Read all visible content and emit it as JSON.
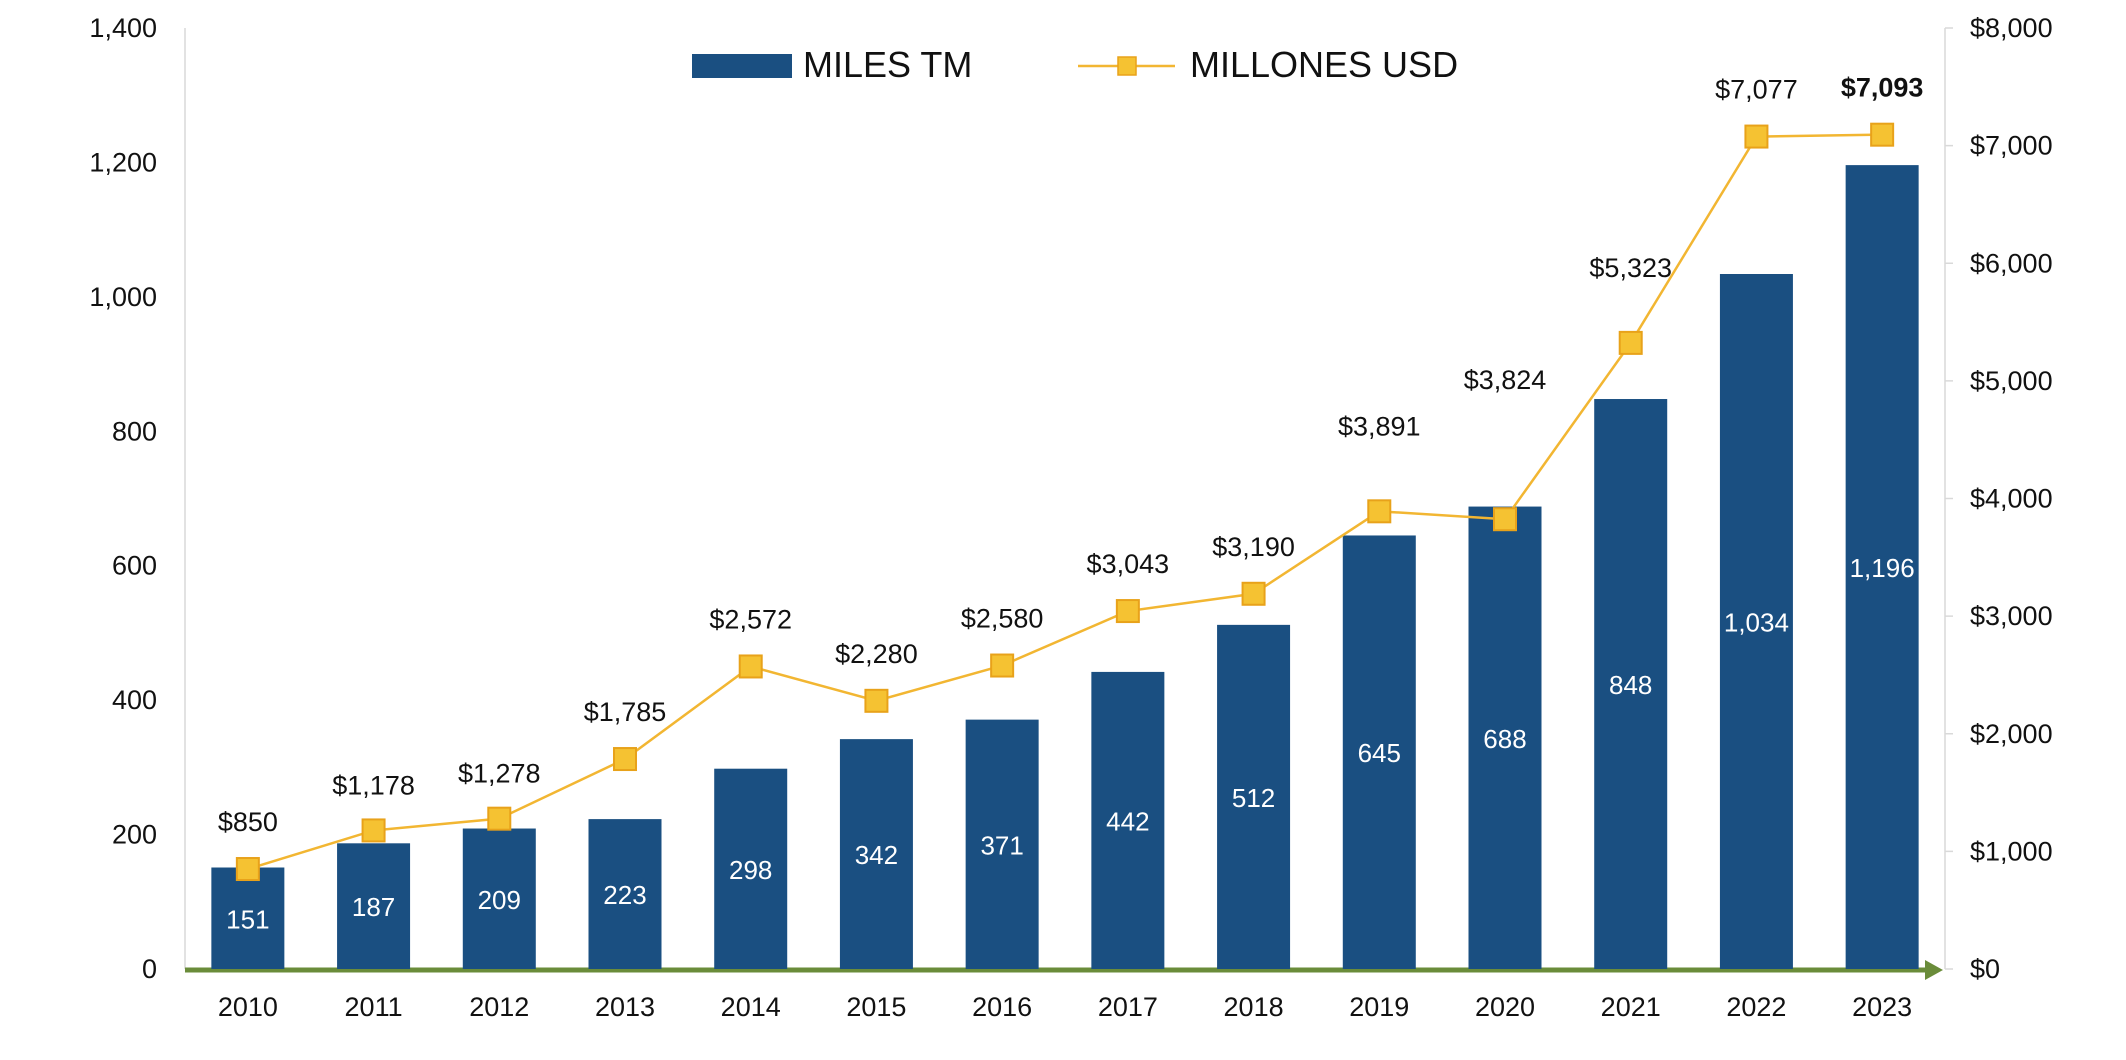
{
  "chart_data": {
    "type": "bar",
    "categories": [
      "2010",
      "2011",
      "2012",
      "2013",
      "2014",
      "2015",
      "2016",
      "2017",
      "2018",
      "2019",
      "2020",
      "2021",
      "2022",
      "2023"
    ],
    "series": [
      {
        "name": "MILES TM",
        "type": "bar",
        "axis": "left",
        "values": [
          151,
          187,
          209,
          223,
          298,
          342,
          371,
          442,
          512,
          645,
          688,
          848,
          1034,
          1196
        ],
        "labels": [
          "151",
          "187",
          "209",
          "223",
          "298",
          "342",
          "371",
          "442",
          "512",
          "645",
          "688",
          "848",
          "1,034",
          "1,196"
        ],
        "color": "#1a4f81"
      },
      {
        "name": "MILLONES USD",
        "type": "line",
        "axis": "right",
        "values": [
          850,
          1178,
          1278,
          1785,
          2572,
          2280,
          2580,
          3043,
          3190,
          3891,
          3824,
          5323,
          7077,
          7093
        ],
        "labels": [
          "$850",
          "$1,178",
          "$1,278",
          "$1,785",
          "$2,572",
          "$2,280",
          "$2,580",
          "$3,043",
          "$3,190",
          "$3,891",
          "$3,824",
          "$5,323",
          "$7,077",
          "$7,093"
        ],
        "color": "#f2b632"
      }
    ],
    "y_left": {
      "ylim": [
        0,
        1400
      ],
      "ticks": [
        "0",
        "200",
        "400",
        "600",
        "800",
        "1,000",
        "1,200",
        "1,400"
      ]
    },
    "y_right": {
      "ylim": [
        0,
        8000
      ],
      "ticks": [
        "$0",
        "$1,000",
        "$2,000",
        "$3,000",
        "$4,000",
        "$5,000",
        "$6,000",
        "$7,000",
        "$8,000"
      ]
    },
    "legend_position": "top-center",
    "grid": false,
    "axis_color": "#6a8c3a"
  }
}
